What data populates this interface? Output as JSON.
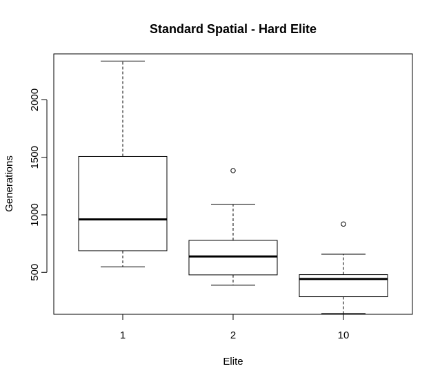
{
  "chart_data": {
    "type": "boxplot",
    "title": "Standard Spatial - Hard Elite",
    "xlabel": "Elite",
    "ylabel": "Generations",
    "categories": [
      "1",
      "2",
      "10"
    ],
    "y_ticks": [
      500,
      1000,
      1500,
      2000
    ],
    "ylim": [
      135,
      2400
    ],
    "grid": false,
    "boxes": [
      {
        "category": "1",
        "whisker_low": 548,
        "q1": 688,
        "median": 960,
        "q3": 1508,
        "whisker_high": 2338,
        "outliers": []
      },
      {
        "category": "2",
        "whisker_low": 388,
        "q1": 478,
        "median": 638,
        "q3": 778,
        "whisker_high": 1090,
        "outliers": [
          1385
        ]
      },
      {
        "category": "10",
        "whisker_low": 142,
        "q1": 288,
        "median": 442,
        "q3": 480,
        "whisker_high": 658,
        "outliers": [
          920
        ]
      }
    ]
  }
}
